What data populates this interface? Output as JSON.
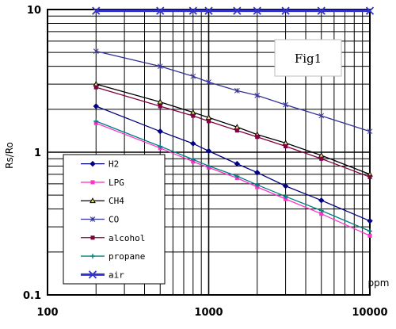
{
  "chart_data": {
    "type": "line",
    "x_scale": "log",
    "y_scale": "log",
    "xlim": [
      100,
      10000
    ],
    "ylim": [
      0.1,
      10
    ],
    "x_ticks": [
      {
        "value": 100,
        "label": "100"
      },
      {
        "value": 1000,
        "label": "1000"
      },
      {
        "value": 10000,
        "label": "10000"
      }
    ],
    "y_ticks": [
      {
        "value": 10,
        "label": "10"
      },
      {
        "value": 1,
        "label": "1"
      },
      {
        "value": 0.1,
        "label": "0.1"
      }
    ],
    "xlabel": "ppm",
    "ylabel": "Rs/Ro",
    "annotation": "Fig1",
    "grid": true,
    "legend_position": "bottom-left",
    "series": [
      {
        "name": "H2",
        "color": "#000080",
        "marker": "diamond",
        "x": [
          200,
          500,
          800,
          1000,
          1500,
          2000,
          3000,
          5000,
          10000
        ],
        "y": [
          2.1,
          1.4,
          1.15,
          1.02,
          0.83,
          0.72,
          0.58,
          0.46,
          0.33
        ]
      },
      {
        "name": "LPG",
        "color": "#ff33cc",
        "marker": "square",
        "x": [
          200,
          500,
          800,
          1000,
          1500,
          2000,
          3000,
          5000,
          10000
        ],
        "y": [
          1.6,
          1.07,
          0.86,
          0.78,
          0.66,
          0.57,
          0.47,
          0.37,
          0.26
        ]
      },
      {
        "name": "CH4",
        "color": "#000000",
        "marker": "triangle",
        "x": [
          200,
          500,
          800,
          1000,
          1500,
          2000,
          3000,
          5000,
          10000
        ],
        "y": [
          3.0,
          2.25,
          1.9,
          1.75,
          1.5,
          1.33,
          1.16,
          0.95,
          0.7
        ]
      },
      {
        "name": "CO",
        "color": "#333399",
        "marker": "star",
        "x": [
          200,
          500,
          800,
          1000,
          1500,
          2000,
          3000,
          5000,
          10000
        ],
        "y": [
          5.1,
          4.0,
          3.4,
          3.1,
          2.7,
          2.5,
          2.15,
          1.8,
          1.4
        ]
      },
      {
        "name": "alcohol",
        "color": "#800040",
        "marker": "square",
        "x": [
          200,
          500,
          800,
          1000,
          1500,
          2000,
          3000,
          5000,
          10000
        ],
        "y": [
          2.85,
          2.1,
          1.8,
          1.65,
          1.42,
          1.28,
          1.1,
          0.9,
          0.67
        ]
      },
      {
        "name": "propane",
        "color": "#008080",
        "marker": "plus",
        "x": [
          200,
          500,
          800,
          1000,
          1500,
          2000,
          3000,
          5000,
          10000
        ],
        "y": [
          1.65,
          1.1,
          0.89,
          0.8,
          0.68,
          0.59,
          0.49,
          0.39,
          0.28
        ]
      },
      {
        "name": "air",
        "color": "#3333cc",
        "marker": "x",
        "x": [
          200,
          500,
          800,
          1000,
          1500,
          2000,
          3000,
          5000,
          10000
        ],
        "y": [
          9.8,
          9.8,
          9.8,
          9.8,
          9.8,
          9.8,
          9.8,
          9.8,
          9.8
        ]
      }
    ]
  }
}
